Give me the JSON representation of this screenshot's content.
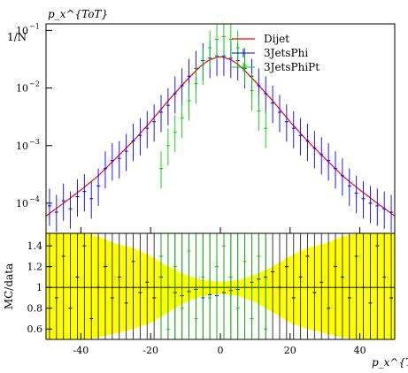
{
  "chart_data": {
    "type": "scatter",
    "title": "",
    "upper_panel": {
      "ylabel": "1/N",
      "xlabel": "p_x^{ToT}",
      "yscale": "log",
      "ylim": [
        3e-05,
        0.13
      ],
      "xlim": [
        -50,
        50
      ],
      "yticks": [
        {
          "label": "10",
          "exp": "−4",
          "value": 0.0001
        },
        {
          "label": "10",
          "exp": "−3",
          "value": 0.001
        },
        {
          "label": "10",
          "exp": "−2",
          "value": 0.01
        },
        {
          "label": "10",
          "exp": "−1",
          "value": 0.1
        }
      ],
      "legend_position": "top-right",
      "series": [
        {
          "name": "Dijet",
          "color": "#ff0000",
          "style": "line",
          "x": [
            -50,
            -45,
            -40,
            -35,
            -30,
            -25,
            -20,
            -15,
            -10,
            -7,
            -5,
            -3,
            -1,
            0,
            1,
            3,
            5,
            7,
            10,
            15,
            20,
            25,
            30,
            35,
            40,
            45,
            50
          ],
          "y": [
            6e-05,
            0.0001,
            0.00017,
            0.0003,
            0.0006,
            0.0012,
            0.0026,
            0.006,
            0.013,
            0.02,
            0.026,
            0.031,
            0.034,
            0.035,
            0.034,
            0.031,
            0.026,
            0.02,
            0.013,
            0.006,
            0.0026,
            0.0012,
            0.0006,
            0.0003,
            0.00017,
            0.0001,
            6e-05
          ]
        },
        {
          "name": "3JetsPhi",
          "color": "#0000ff",
          "style": "points",
          "x": [
            -49,
            -47,
            -45,
            -43,
            -41,
            -39,
            -37,
            -35,
            -33,
            -31,
            -29,
            -27,
            -25,
            -23,
            -21,
            -19,
            -17,
            -15,
            -13,
            -11,
            -9,
            -7,
            -5,
            -3,
            -1,
            1,
            3,
            5,
            7,
            9,
            11,
            13,
            15,
            17,
            19,
            21,
            23,
            25,
            27,
            29,
            31,
            33,
            35,
            37,
            39,
            41,
            43,
            45,
            47,
            49
          ],
          "y": [
            9e-05,
            7e-05,
            0.00011,
            8e-05,
            0.00013,
            0.00016,
            0.00012,
            0.0002,
            0.0004,
            0.00055,
            0.0006,
            0.0008,
            0.0012,
            0.0015,
            0.002,
            0.0026,
            0.0038,
            0.005,
            0.008,
            0.011,
            0.016,
            0.022,
            0.03,
            0.033,
            0.036,
            0.036,
            0.033,
            0.03,
            0.022,
            0.016,
            0.011,
            0.008,
            0.0055,
            0.0038,
            0.0026,
            0.002,
            0.0015,
            0.0012,
            0.0009,
            0.0007,
            0.00055,
            0.0004,
            0.0003,
            0.0002,
            0.00015,
            0.00012,
            0.0001,
            9e-05,
            8e-05,
            7e-05
          ]
        },
        {
          "name": "3JetsPhiPt",
          "color": "#00cc00",
          "style": "points",
          "x": [
            -17,
            -15,
            -13,
            -11,
            -9,
            -7,
            -5,
            -3,
            -1,
            1,
            3,
            5,
            7,
            9,
            11,
            13
          ],
          "y": [
            0.0004,
            0.001,
            0.0017,
            0.003,
            0.006,
            0.012,
            0.025,
            0.05,
            0.07,
            0.078,
            0.07,
            0.05,
            0.025,
            0.009,
            0.004,
            0.002
          ]
        }
      ]
    },
    "ratio_panel": {
      "ylabel": "MC/data",
      "xlabel": "p_x^{ToT}",
      "ylim": [
        0.5,
        1.52
      ],
      "xlim": [
        -50,
        50
      ],
      "yticks": [
        "0.6",
        "0.8",
        "1",
        "1.2",
        "1.4"
      ],
      "xticks": [
        "-40",
        "-20",
        "0",
        "20",
        "40"
      ],
      "band_color": "#ffff00",
      "band": {
        "x": [
          -50,
          -45,
          -40,
          -35,
          -30,
          -25,
          -20,
          -15,
          -10,
          -5,
          0,
          5,
          10,
          15,
          20,
          25,
          30,
          35,
          40,
          45,
          50
        ],
        "low": [
          0.5,
          0.5,
          0.5,
          0.52,
          0.56,
          0.6,
          0.66,
          0.76,
          0.86,
          0.92,
          0.94,
          0.92,
          0.86,
          0.76,
          0.66,
          0.6,
          0.56,
          0.52,
          0.5,
          0.5,
          0.5
        ],
        "high": [
          1.52,
          1.52,
          1.52,
          1.49,
          1.42,
          1.38,
          1.3,
          1.2,
          1.12,
          1.07,
          1.05,
          1.07,
          1.12,
          1.2,
          1.3,
          1.38,
          1.42,
          1.49,
          1.52,
          1.52,
          1.52
        ]
      },
      "series": [
        {
          "name": "3JetsPhi",
          "color": "#0000ff",
          "x": [
            -49,
            -47,
            -45,
            -43,
            -41,
            -39,
            -37,
            -35,
            -33,
            -31,
            -29,
            -27,
            -25,
            -23,
            -21,
            -19,
            -17,
            -15,
            -13,
            -11,
            -9,
            -7,
            -5,
            -3,
            -1,
            1,
            3,
            5,
            7,
            9,
            11,
            13,
            15,
            17,
            19,
            21,
            23,
            25,
            27,
            29,
            31,
            33,
            35,
            37,
            39,
            41,
            43,
            45,
            47,
            49
          ],
          "y": [
            1.2,
            0.9,
            1.3,
            0.8,
            1.1,
            1.4,
            0.7,
            1.0,
            1.2,
            0.9,
            1.1,
            0.85,
            1.25,
            0.95,
            1.05,
            0.9,
            1.1,
            1.0,
            0.95,
            0.92,
            0.96,
            0.98,
            0.9,
            0.93,
            0.92,
            0.95,
            0.97,
            0.98,
            1.0,
            1.05,
            1.08,
            1.1,
            1.15,
            1.0,
            1.2,
            0.9,
            1.1,
            1.3,
            0.95,
            1.05,
            0.8,
            1.2,
            1.1,
            0.9,
            1.3,
            1.0,
            0.85,
            1.4,
            1.1,
            0.9
          ]
        },
        {
          "name": "3JetsPhiPt",
          "color": "#00cc00",
          "x": [
            -17,
            -15,
            -13,
            -11,
            -9,
            -7,
            -5,
            -3,
            -1,
            1,
            3,
            5,
            7,
            9,
            11,
            13
          ],
          "y": [
            1.3,
            0.6,
            1.2,
            0.8,
            1.35,
            0.7,
            1.1,
            0.9,
            1.2,
            1.4,
            1.1,
            0.8,
            1.25,
            0.7,
            1.3,
            0.6
          ]
        }
      ]
    }
  }
}
